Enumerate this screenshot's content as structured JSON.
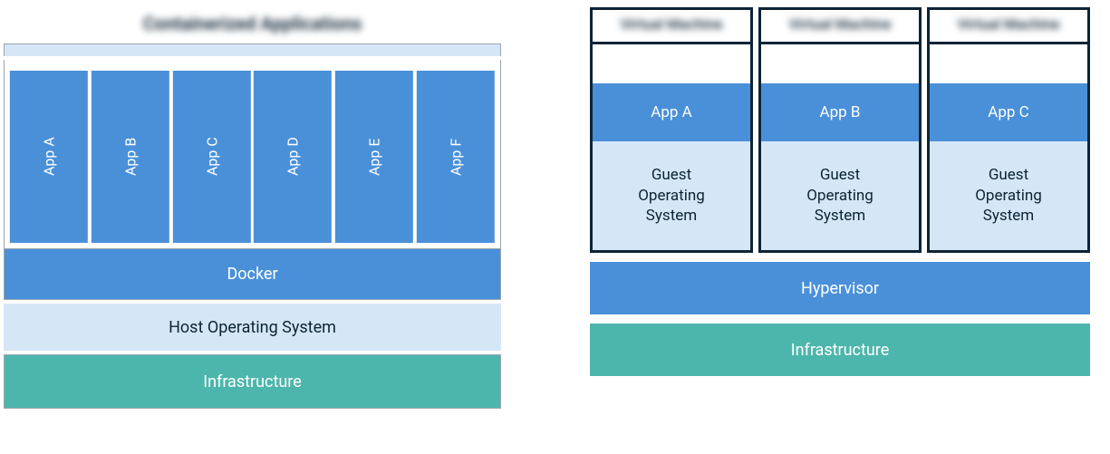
{
  "colors": {
    "blue": "#4a90d9",
    "lightblue": "#d5e7f7",
    "teal": "#4db6ac",
    "darktext": "#0d2436",
    "border": "#9aa5ad",
    "white": "#ffffff"
  },
  "left": {
    "title": "Containerized Applications",
    "apps": [
      "App A",
      "App B",
      "App C",
      "App D",
      "App E",
      "App F"
    ],
    "app_color": "#4a90d9",
    "docker_label": "Docker",
    "docker_color": "#4a90d9",
    "host_os_label": "Host Operating System",
    "host_os_color": "#d5e7f7",
    "infra_label": "Infrastructure",
    "infra_color": "#4db6ac"
  },
  "right": {
    "vms": [
      {
        "title": "Virtual Machine",
        "app": "App A",
        "guest": "Guest\nOperating\nSystem"
      },
      {
        "title": "Virtual Machine",
        "app": "App B",
        "guest": "Guest\nOperating\nSystem"
      },
      {
        "title": "Virtual Machine",
        "app": "App C",
        "guest": "Guest\nOperating\nSystem"
      }
    ],
    "vm_app_color": "#4a90d9",
    "vm_guest_color": "#d5e7f7",
    "hypervisor_label": "Hypervisor",
    "hypervisor_color": "#4a90d9",
    "infra_label": "Infrastructure",
    "infra_color": "#4db6ac"
  }
}
